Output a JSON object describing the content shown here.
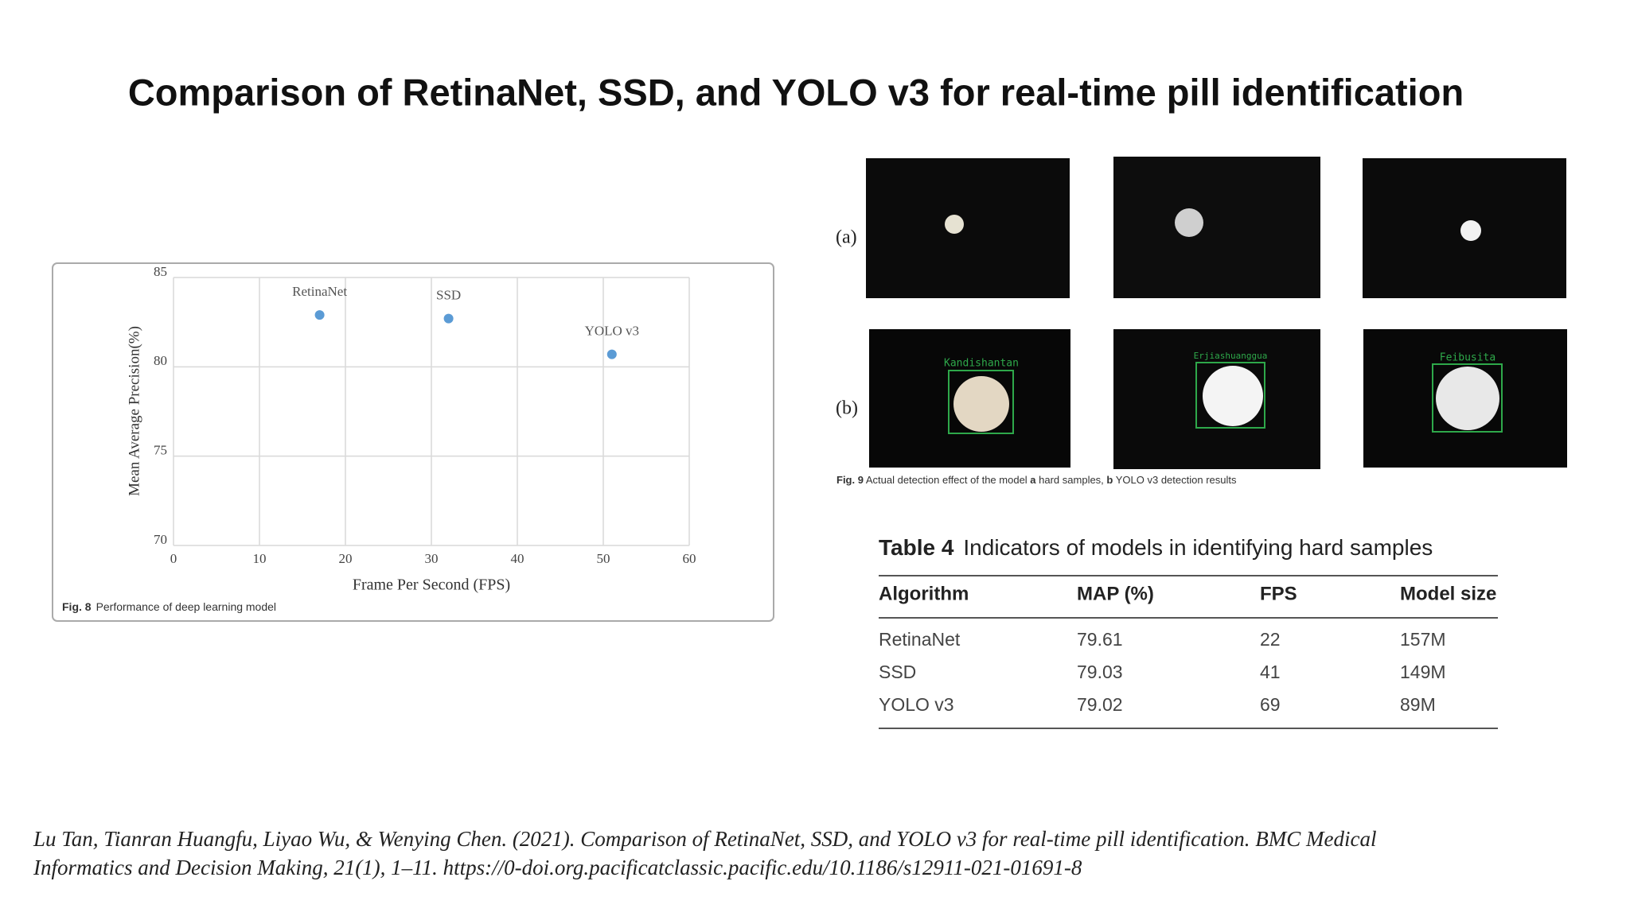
{
  "title": "Comparison of RetinaNet, SSD, and YOLO v3 for real-time pill identification",
  "chart_data": {
    "type": "scatter",
    "x": [
      17,
      32,
      51
    ],
    "values": [
      82.9,
      82.7,
      80.7
    ],
    "point_labels": [
      "RetinaNet",
      "SSD",
      "YOLO v3"
    ],
    "color": "#5b9bd5",
    "xlim": [
      0,
      60
    ],
    "xticks": [
      0,
      10,
      20,
      30,
      40,
      50,
      60
    ],
    "ylim": [
      70,
      85
    ],
    "yticks": [
      70,
      75,
      80,
      85
    ],
    "grid": true,
    "x_label": "Frame Per Second (FPS)",
    "y_label": "Mean Average Precision(%)",
    "caption": {
      "label": "Fig. 8",
      "text": "Performance of deep learning model"
    }
  },
  "figure9": {
    "row_labels": [
      "(a)",
      "(b)"
    ],
    "detection_labels": [
      "Kandishantan",
      "Erjiashuanggua",
      "Feibusita"
    ],
    "caption": [
      {
        "text": "Fig. 9",
        "bold": true
      },
      {
        "text": " Actual detection effect of the model ",
        "bold": false
      },
      {
        "text": "a",
        "bold": true
      },
      {
        "text": " hard samples, ",
        "bold": false
      },
      {
        "text": "b",
        "bold": true
      },
      {
        "text": " YOLO v3 detection results",
        "bold": false
      }
    ]
  },
  "table": {
    "label": "Table 4",
    "title": "Indicators of models in identifying hard samples",
    "header": [
      "Algorithm",
      "MAP (%)",
      "FPS",
      "Model size"
    ],
    "rows": [
      [
        "RetinaNet",
        "79.61",
        "22",
        "157M"
      ],
      [
        "SSD",
        "79.03",
        "41",
        "149M"
      ],
      [
        "YOLO v3",
        "79.02",
        "69",
        "89M"
      ]
    ]
  },
  "citation": [
    "Lu Tan, Tianran Huangfu, Liyao Wu, & Wenying Chen. (2021). Comparison of RetinaNet, SSD, and YOLO v3 for real-time pill identification. BMC Medical",
    "Informatics and Decision Making, 21(1), 1–11. https://0-doi.org.pacificatclassic.pacific.edu/10.1186/s12911-021-01691-8"
  ]
}
